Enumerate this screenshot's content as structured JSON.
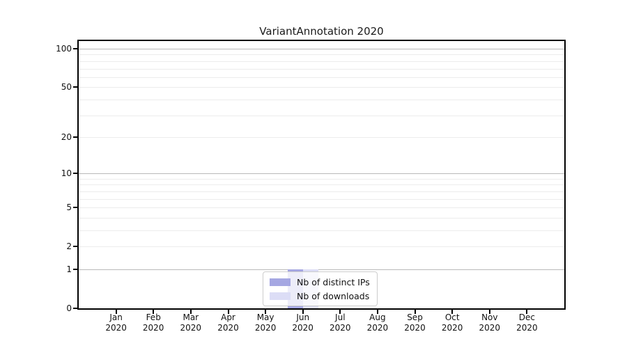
{
  "chart_data": {
    "type": "bar",
    "title": "VariantAnnotation 2020",
    "categories": [
      "Jan 2020",
      "Feb 2020",
      "Mar 2020",
      "Apr 2020",
      "May 2020",
      "Jun 2020",
      "Jul 2020",
      "Aug 2020",
      "Sep 2020",
      "Oct 2020",
      "Nov 2020",
      "Dec 2020"
    ],
    "series": [
      {
        "name": "Nb of distinct IPs",
        "color": "#a5a7e2",
        "values": [
          0,
          0,
          0,
          0,
          0,
          1,
          0,
          0,
          0,
          0,
          0,
          0
        ]
      },
      {
        "name": "Nb of downloads",
        "color": "#dcddf6",
        "values": [
          0,
          0,
          0,
          0,
          0,
          1,
          0,
          0,
          0,
          0,
          0,
          0
        ]
      }
    ],
    "y_axis": {
      "scale": "log1p",
      "tick_labels": [
        0,
        1,
        2,
        5,
        10,
        20,
        50,
        100
      ],
      "major_gridlines": [
        1,
        10,
        100
      ],
      "minor_gridlines": [
        2,
        3,
        4,
        5,
        6,
        7,
        8,
        9,
        20,
        30,
        40,
        50,
        60,
        70,
        80,
        90
      ],
      "ymin": 0,
      "ymax": 100
    },
    "legend_position": "bottom-center",
    "grid": true
  }
}
